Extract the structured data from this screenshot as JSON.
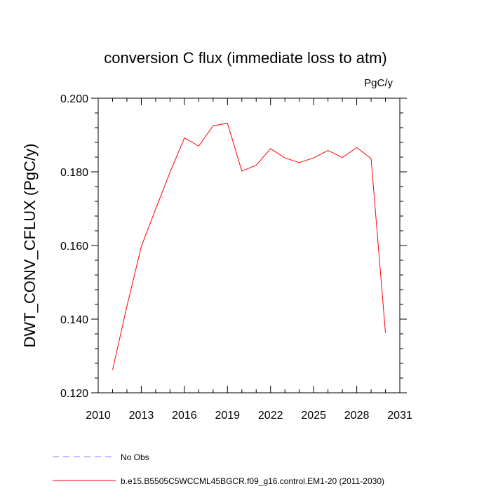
{
  "chart_data": {
    "type": "line",
    "title": "conversion C flux (immediate loss to atm)",
    "units_label": "PgC/y",
    "ylabel": "DWT_CONV_CFLUX  (PgC/y)",
    "xlabel": "",
    "xlim": [
      2010,
      2031
    ],
    "ylim": [
      0.12,
      0.2
    ],
    "x_ticks": [
      2010,
      2013,
      2016,
      2019,
      2022,
      2025,
      2028,
      2031
    ],
    "x_tick_labels": [
      "2010",
      "2013",
      "2016",
      "2019",
      "2022",
      "2025",
      "2028",
      "2031"
    ],
    "y_ticks": [
      0.12,
      0.14,
      0.16,
      0.18,
      0.2
    ],
    "y_tick_labels": [
      "0.120",
      "0.140",
      "0.160",
      "0.180",
      "0.200"
    ],
    "series": [
      {
        "name": "b.e15.B5505C5WCCML45BGCR.f09_g16.control.EM1-20 (2011-2030)",
        "color": "#ff0000",
        "style": "solid",
        "x": [
          2011,
          2012,
          2013,
          2014,
          2015,
          2016,
          2017,
          2018,
          2019,
          2020,
          2021,
          2022,
          2023,
          2024,
          2025,
          2026,
          2027,
          2028,
          2029,
          2030
        ],
        "y": [
          0.1262,
          0.1435,
          0.1597,
          0.1699,
          0.1799,
          0.1892,
          0.187,
          0.1925,
          0.1932,
          0.1802,
          0.1818,
          0.1863,
          0.1838,
          0.1825,
          0.1838,
          0.1858,
          0.1839,
          0.1866,
          0.1836,
          0.1363
        ]
      }
    ],
    "legend": [
      {
        "label": "No Obs",
        "color": "#8080ff",
        "style": "dashed"
      },
      {
        "label": "b.e15.B5505C5WCCML45BGCR.f09_g16.control.EM1-20 (2011-2030)",
        "color": "#ff0000",
        "style": "solid"
      }
    ]
  }
}
